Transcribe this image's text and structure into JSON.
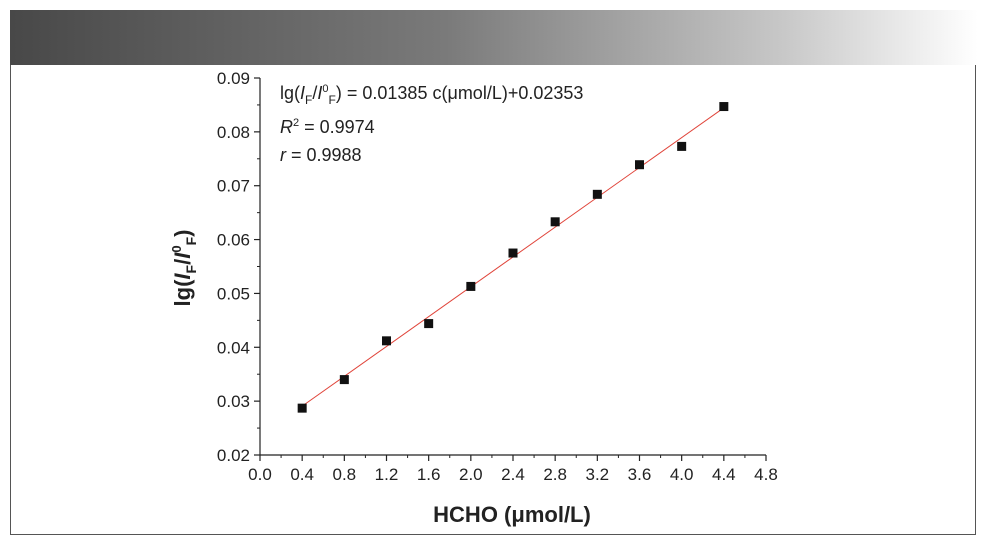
{
  "chart_data": {
    "type": "scatter",
    "x": [
      0.4,
      0.8,
      1.2,
      1.6,
      2.0,
      2.4,
      2.8,
      3.2,
      3.6,
      4.0,
      4.4
    ],
    "y": [
      0.0287,
      0.034,
      0.0412,
      0.0444,
      0.0513,
      0.0575,
      0.0633,
      0.0684,
      0.0739,
      0.0773,
      0.0847
    ],
    "fit_line": {
      "slope": 0.01385,
      "intercept": 0.02353,
      "color": "#e0443a"
    },
    "marker_color": "#111111",
    "xlabel": "HCHO (μmol/L)",
    "ylabel": {
      "prefix": "lg(",
      "i1": "I",
      "s1": "F",
      "mid": "/",
      "i2": "I",
      "sup2": "0",
      "s2": "F",
      "suffix": ")"
    },
    "xlim": [
      0.0,
      4.8
    ],
    "ylim": [
      0.02,
      0.09
    ],
    "xticks": [
      "0.0",
      "0.4",
      "0.8",
      "1.2",
      "1.6",
      "2.0",
      "2.4",
      "2.8",
      "3.2",
      "3.6",
      "4.0",
      "4.4",
      "4.8"
    ],
    "yticks": [
      "0.02",
      "0.03",
      "0.04",
      "0.05",
      "0.06",
      "0.07",
      "0.08",
      "0.09"
    ],
    "grid": false,
    "annotations": {
      "equation": {
        "prefix": "lg(",
        "i1": "I",
        "s1": "F",
        "mid": "/",
        "i2": "I",
        "sup2": "0",
        "s2": "F",
        "suffix": ") = 0.01385 c(μmol/L)+0.02353"
      },
      "r2": {
        "symbol": "R",
        "sup": "2",
        "rest": " = 0.9974"
      },
      "r": {
        "symbol": "r",
        "rest": " = 0.9988"
      }
    }
  }
}
